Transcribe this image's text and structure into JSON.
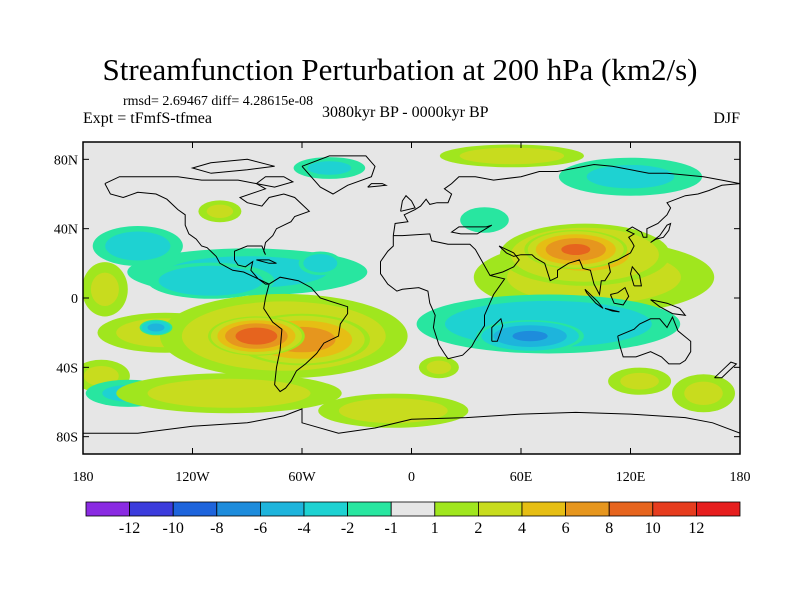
{
  "title": "Streamfunction Perturbation at 200 hPa (km2/s)",
  "stats": "rmsd= 2.69467 diff= 4.28615e-08",
  "expt_label": "Expt = tFmfS-tfmea",
  "period_label": "3080kyr BP - 0000kyr BP",
  "season_label": "DJF",
  "lat_ticks": [
    "80N",
    "40N",
    "0",
    "40S",
    "80S"
  ],
  "lon_ticks": [
    "180",
    "120W",
    "60W",
    "0",
    "60E",
    "120E",
    "180"
  ],
  "colorbar": {
    "labels": [
      "-12",
      "-10",
      "-8",
      "-6",
      "-4",
      "-2",
      "-1",
      "1",
      "2",
      "4",
      "6",
      "8",
      "10",
      "12"
    ],
    "colors": [
      "#8a2be2",
      "#3c3cdc",
      "#1e64dc",
      "#1e8cdc",
      "#1eb4dc",
      "#1ed2d2",
      "#28e6a0",
      "#e6e6e6",
      "#a0e61e",
      "#c8dc1e",
      "#e6be14",
      "#e6961e",
      "#e6641e",
      "#e63c1e",
      "#e61e1e"
    ]
  },
  "chart_data": {
    "type": "heatmap",
    "title": "Streamfunction Perturbation at 200 hPa (km2/s)",
    "variable": "streamfunction perturbation",
    "units": "km2/s",
    "level": "200 hPa",
    "season": "DJF",
    "rmsd": 2.69467,
    "diff": 4.28615e-08,
    "x_range": [
      -180,
      180
    ],
    "y_range": [
      -90,
      90
    ],
    "levels": [
      -12,
      -10,
      -8,
      -6,
      -4,
      -2,
      -1,
      1,
      2,
      4,
      6,
      8,
      10,
      12
    ],
    "anomalies": [
      {
        "lon": -85,
        "lat": -22,
        "value": 9,
        "rx": 28,
        "ry": 12
      },
      {
        "lon": -60,
        "lat": -24,
        "value": 7,
        "rx": 40,
        "ry": 16
      },
      {
        "lon": -70,
        "lat": -22,
        "value": 3.5,
        "rx": 78,
        "ry": 28
      },
      {
        "lon": -135,
        "lat": -20,
        "value": 2.5,
        "rx": 45,
        "ry": 14
      },
      {
        "lon": -100,
        "lat": -55,
        "value": 2.5,
        "rx": 75,
        "ry": 14
      },
      {
        "lon": -10,
        "lat": -65,
        "value": 2.5,
        "rx": 50,
        "ry": 12
      },
      {
        "lon": 15,
        "lat": -40,
        "value": 2,
        "rx": 14,
        "ry": 8
      },
      {
        "lon": 125,
        "lat": -48,
        "value": 2,
        "rx": 22,
        "ry": 10
      },
      {
        "lon": 160,
        "lat": -55,
        "value": 2,
        "rx": 22,
        "ry": 14
      },
      {
        "lon": -170,
        "lat": -45,
        "value": 2,
        "rx": 20,
        "ry": 12
      },
      {
        "lon": 90,
        "lat": 28,
        "value": 8,
        "rx": 30,
        "ry": 12
      },
      {
        "lon": 95,
        "lat": 25,
        "value": 4.5,
        "rx": 52,
        "ry": 20
      },
      {
        "lon": 100,
        "lat": 12,
        "value": 2.5,
        "rx": 80,
        "ry": 26
      },
      {
        "lon": 55,
        "lat": 82,
        "value": 2.5,
        "rx": 48,
        "ry": 8
      },
      {
        "lon": -105,
        "lat": 50,
        "value": 2,
        "rx": 15,
        "ry": 8
      },
      {
        "lon": -168,
        "lat": 5,
        "value": 2,
        "rx": 16,
        "ry": 20
      },
      {
        "lon": 65,
        "lat": -22,
        "value": -6,
        "rx": 32,
        "ry": 10
      },
      {
        "lon": 75,
        "lat": -15,
        "value": -3,
        "rx": 85,
        "ry": 20
      },
      {
        "lon": -110,
        "lat": 10,
        "value": -3.5,
        "rx": 40,
        "ry": 12
      },
      {
        "lon": -90,
        "lat": 15,
        "value": -2.2,
        "rx": 82,
        "ry": 17
      },
      {
        "lon": -50,
        "lat": 20,
        "value": -3,
        "rx": 14,
        "ry": 8
      },
      {
        "lon": -150,
        "lat": 30,
        "value": -2.5,
        "rx": 30,
        "ry": 14
      },
      {
        "lon": -140,
        "lat": -17,
        "value": -4.5,
        "rx": 10,
        "ry": 5
      },
      {
        "lon": -155,
        "lat": -55,
        "value": -2,
        "rx": 30,
        "ry": 10
      },
      {
        "lon": -45,
        "lat": 75,
        "value": -2,
        "rx": 25,
        "ry": 8
      },
      {
        "lon": 120,
        "lat": 70,
        "value": -2,
        "rx": 50,
        "ry": 14
      },
      {
        "lon": 40,
        "lat": 45,
        "value": -1.6,
        "rx": 18,
        "ry": 10
      }
    ]
  }
}
